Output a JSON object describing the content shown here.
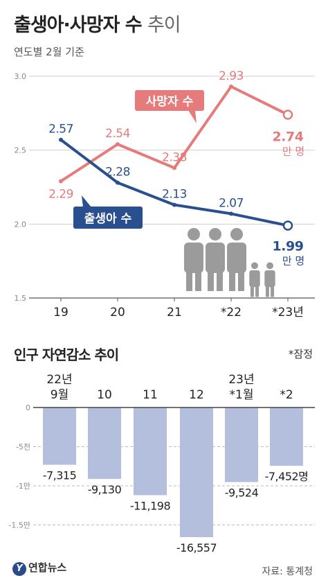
{
  "header": {
    "title_bold": "출생아·사망자 수",
    "title_light": "추이",
    "subtitle": "연도별 2월 기준"
  },
  "chart_data": [
    {
      "type": "line",
      "x": [
        "19",
        "20",
        "21",
        "*22",
        "*23년"
      ],
      "ylim": [
        1.5,
        3.0
      ],
      "yticks": [
        "1.5",
        "2.0",
        "2.5",
        "3.0"
      ],
      "grid": true,
      "series": [
        {
          "name": "사망자 수",
          "color": "#e57b7b",
          "values": [
            2.29,
            2.54,
            2.38,
            2.93,
            2.74
          ],
          "labels": [
            "2.29",
            "2.54",
            "2.38",
            "2.93",
            "2.74"
          ],
          "unit": "만 명"
        },
        {
          "name": "출생아 수",
          "color": "#2a4f8f",
          "values": [
            2.57,
            2.28,
            2.13,
            2.07,
            1.99
          ],
          "labels": [
            "2.57",
            "2.28",
            "2.13",
            "2.07",
            "1.99"
          ],
          "unit": "만 명"
        }
      ]
    },
    {
      "type": "bar",
      "title": "인구 자연감소 추이",
      "note": "*잠정",
      "categories": [
        [
          "22년",
          "9월"
        ],
        [
          "10"
        ],
        [
          "11"
        ],
        [
          "12"
        ],
        [
          "23년",
          "*1월"
        ],
        [
          "*2"
        ]
      ],
      "values": [
        -7315,
        -9130,
        -11198,
        -16557,
        -9524,
        -7452
      ],
      "labels": [
        "-7,315",
        "-9,130",
        "-11,198",
        "-16,557",
        "-9,524",
        "-7,452명"
      ],
      "ylim": [
        -17000,
        0
      ],
      "yticks": [
        {
          "value": 0,
          "label": "0"
        },
        {
          "value": -5000,
          "label": "-5천"
        },
        {
          "value": -10000,
          "label": "-1만"
        },
        {
          "value": -15000,
          "label": "-1.5만"
        }
      ],
      "bar_color": "#b3bfdc"
    }
  ],
  "footer": {
    "logo_mark": "Y",
    "logo": "연합뉴스",
    "source": "자료: 통계청"
  }
}
